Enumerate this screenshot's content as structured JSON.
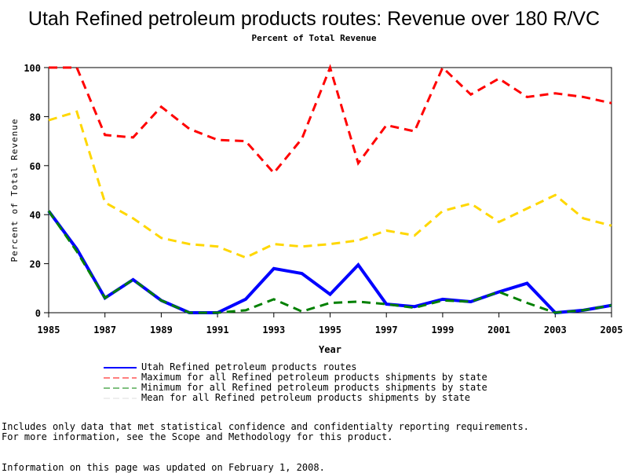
{
  "chart_data": {
    "type": "line",
    "title": "Utah Refined petroleum products routes: Revenue over 180 R/VC",
    "subtitle": "Percent of Total Revenue",
    "xlabel": "Year",
    "ylabel": "Percent of Total Revenue",
    "xlim": [
      1985,
      2005
    ],
    "ylim": [
      0,
      100
    ],
    "x_ticks": [
      "1985",
      "1987",
      "1989",
      "1991",
      "1993",
      "1995",
      "1997",
      "1999",
      "2001",
      "2003",
      "2005"
    ],
    "y_ticks": [
      "0",
      "20",
      "40",
      "60",
      "80",
      "100"
    ],
    "grid": false,
    "legend_placement": "bottom",
    "x": [
      1985,
      1986,
      1987,
      1988,
      1989,
      1990,
      1991,
      1992,
      1993,
      1994,
      1995,
      1996,
      1997,
      1998,
      1999,
      2000,
      2001,
      2002,
      2003,
      2004,
      2005
    ],
    "series": [
      {
        "name": "Utah Refined petroleum products routes",
        "color": "#0000ff",
        "style": "solid",
        "values": [
          41.5,
          26,
          6,
          13.5,
          5,
          0,
          0,
          5.5,
          18,
          16,
          7.5,
          19.5,
          3.5,
          2.5,
          5.5,
          4.5,
          8.5,
          12,
          0,
          1,
          3
        ]
      },
      {
        "name": "Maximum for all Refined petroleum products shipments by state",
        "color": "#ff0000",
        "style": "dashed",
        "values": [
          100,
          100,
          72.5,
          71.5,
          84,
          75,
          70.5,
          70,
          57,
          71,
          100,
          61,
          76.5,
          74,
          100,
          89,
          95.5,
          88,
          89.5,
          88,
          85.5
        ]
      },
      {
        "name": "Minimum for all Refined petroleum products shipments by state",
        "color": "#008000",
        "style": "dashed",
        "values": [
          41.5,
          25,
          6,
          13.5,
          5,
          0,
          0,
          1,
          5.5,
          0.5,
          4,
          4.5,
          3.5,
          2,
          5,
          4.5,
          8.5,
          4,
          0,
          1,
          3
        ]
      },
      {
        "name": "Mean for all Refined petroleum products shipments by state",
        "color": "#ffd700",
        "style": "dashed",
        "legend_color": "#dddddd",
        "values": [
          78.5,
          82,
          45,
          38.5,
          30.5,
          28,
          27,
          22.5,
          28,
          27,
          28,
          29.5,
          33.5,
          31.5,
          41.5,
          44.5,
          37,
          42.5,
          48,
          38.5,
          35.5
        ]
      }
    ]
  },
  "notes": {
    "line1": "Includes only data that met statistical confidence and confidentialty reporting requirements.",
    "line2": "For more information, see the Scope and Methodology for this product.",
    "line3": "Information on this page was updated on February 1, 2008."
  }
}
